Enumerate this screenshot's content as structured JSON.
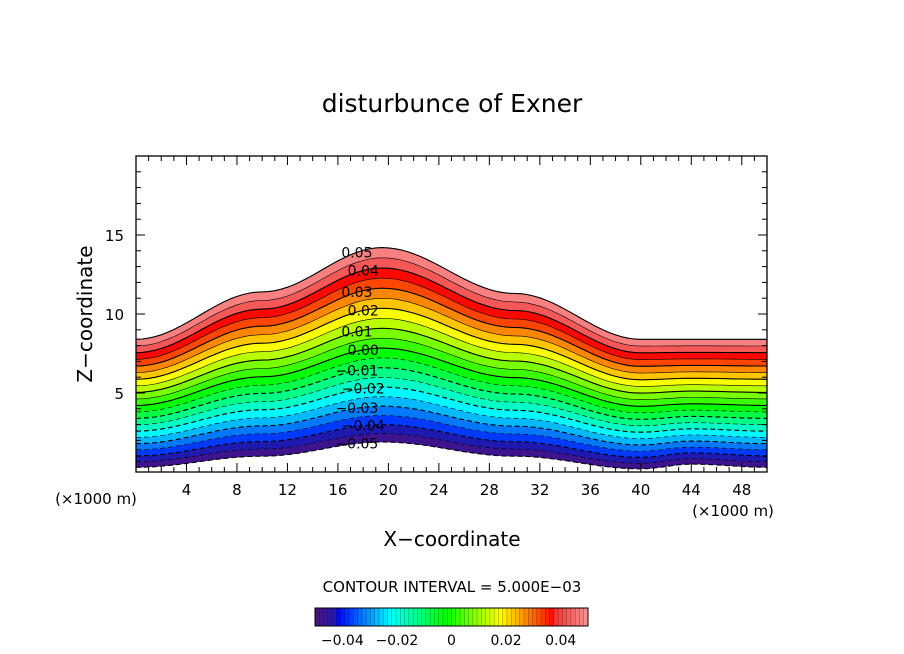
{
  "chart_data": {
    "type": "contour",
    "title": "disturbunce of Exner",
    "xlabel": "X−coordinate",
    "ylabel": "Z−coordinate",
    "x_unit_label": "(×1000 m)",
    "y_unit_label": "(×1000 m)",
    "xlim": [
      0,
      50
    ],
    "ylim": [
      0,
      20
    ],
    "x_ticks": [
      4,
      8,
      12,
      16,
      20,
      24,
      28,
      32,
      36,
      40,
      44,
      48
    ],
    "y_ticks": [
      5,
      10,
      15
    ],
    "contour_interval_label": "CONTOUR INTERVAL = 5.000E−03",
    "value_range": [
      -0.05,
      0.05
    ],
    "contour_labels": [
      "0.05",
      "0.04",
      "0.03",
      "0.02",
      "0.01",
      "0.00",
      "−0.01",
      "−0.02",
      "−0.03",
      "−0.04",
      "−0.05"
    ],
    "colorbar_ticks": [
      "−0.04",
      "−0.02",
      "0",
      "0.02",
      "0.04"
    ],
    "colorbar_tick_values": [
      -0.04,
      -0.02,
      0,
      0.02,
      0.04
    ],
    "top_boundary_height_profile": [
      [
        0,
        8.4
      ],
      [
        10,
        11.4
      ],
      [
        19.5,
        14.2
      ],
      [
        30,
        11.3
      ],
      [
        40,
        8.4
      ],
      [
        50,
        8.4
      ]
    ],
    "bottom_terrain_profile": [
      [
        0,
        0.3
      ],
      [
        10,
        1.0
      ],
      [
        19.5,
        1.9
      ],
      [
        30,
        1.0
      ],
      [
        40,
        0.2
      ],
      [
        44,
        0.5
      ],
      [
        50,
        0.3
      ]
    ]
  }
}
